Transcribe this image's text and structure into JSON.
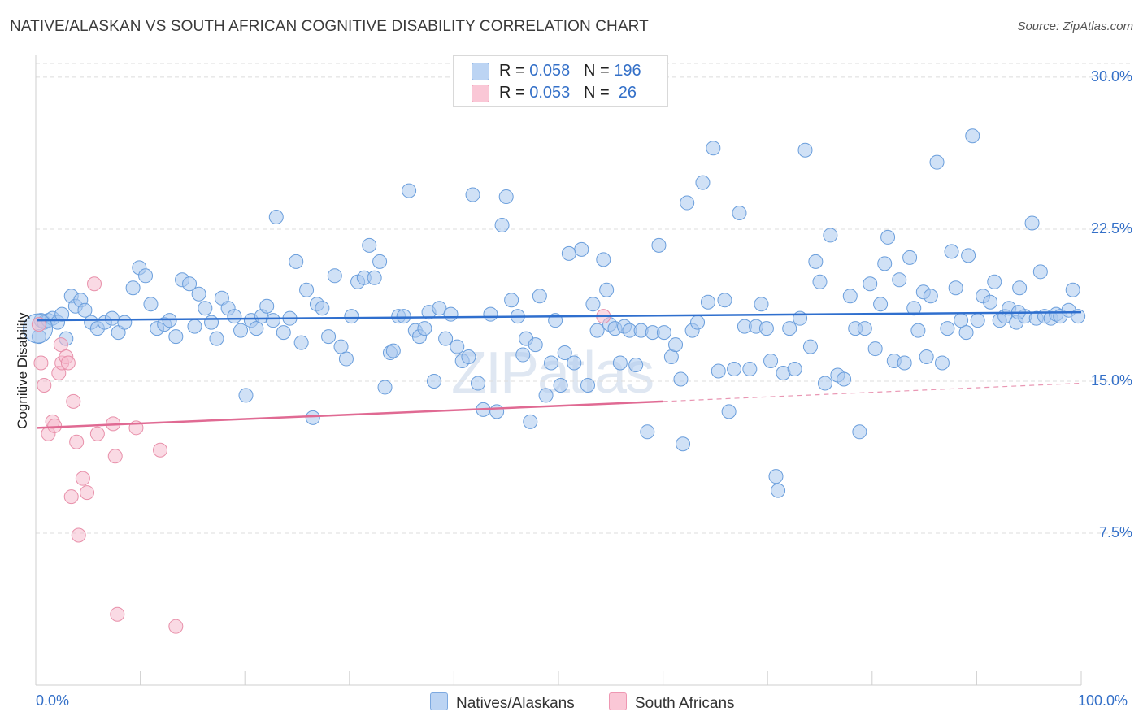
{
  "title": "NATIVE/ALASKAN VS SOUTH AFRICAN COGNITIVE DISABILITY CORRELATION CHART",
  "source": "Source: ZipAtlas.com",
  "watermark": {
    "main": "ZIP",
    "sub": "atlas"
  },
  "legend": {
    "rows": [
      {
        "r_label": "R =",
        "r_value": "0.058",
        "n_label": "N =",
        "n_value": "196"
      },
      {
        "r_label": "R =",
        "r_value": "0.053",
        "n_label": "N =",
        "n_value": " 26"
      }
    ]
  },
  "colors": {
    "blue_fill": "#a9c8ee",
    "blue_stroke": "#6a9edc",
    "blue_line": "#2f6fce",
    "pink_fill": "#f6bccd",
    "pink_stroke": "#e890aa",
    "pink_line": "#e06a93",
    "tick_text": "#3470c8",
    "grid": "#dcdcdc"
  },
  "chart_data": {
    "type": "scatter",
    "title": "NATIVE/ALASKAN VS SOUTH AFRICAN COGNITIVE DISABILITY CORRELATION CHART",
    "xlabel": "",
    "ylabel": "Cognitive Disability",
    "xlim": [
      0,
      100
    ],
    "ylim": [
      0,
      31
    ],
    "x_tick_labels": [
      "0.0%",
      "100.0%"
    ],
    "y_ticks": [
      7.5,
      15.0,
      22.5,
      30.0
    ],
    "y_tick_labels": [
      "7.5%",
      "15.0%",
      "22.5%",
      "30.0%"
    ],
    "grid": "horizontal dashed",
    "legend_placement": "top-center and bottom",
    "series": [
      {
        "name": "Natives/Alaskans",
        "r": 0.058,
        "n": 196,
        "trend": {
          "x": [
            0,
            100
          ],
          "y": [
            18.0,
            18.4
          ],
          "style": "solid"
        },
        "points": [
          [
            0.3,
            17.2
          ],
          [
            0.5,
            18.0
          ],
          [
            0.8,
            17.9
          ],
          [
            1.2,
            18.0
          ],
          [
            1.6,
            18.1
          ],
          [
            2.1,
            17.9
          ],
          [
            2.5,
            18.3
          ],
          [
            2.9,
            17.1
          ],
          [
            3.4,
            19.2
          ],
          [
            3.8,
            18.7
          ],
          [
            4.3,
            19.0
          ],
          [
            4.7,
            18.5
          ],
          [
            5.3,
            17.9
          ],
          [
            5.9,
            17.6
          ],
          [
            6.6,
            17.9
          ],
          [
            7.3,
            18.1
          ],
          [
            7.9,
            17.4
          ],
          [
            8.5,
            17.9
          ],
          [
            9.3,
            19.6
          ],
          [
            9.9,
            20.6
          ],
          [
            10.5,
            20.2
          ],
          [
            11.0,
            18.8
          ],
          [
            11.6,
            17.6
          ],
          [
            12.3,
            17.8
          ],
          [
            12.8,
            18.0
          ],
          [
            13.4,
            17.2
          ],
          [
            14.0,
            20.0
          ],
          [
            14.7,
            19.8
          ],
          [
            15.2,
            17.7
          ],
          [
            15.6,
            19.3
          ],
          [
            16.2,
            18.6
          ],
          [
            16.8,
            17.9
          ],
          [
            17.3,
            17.1
          ],
          [
            17.8,
            19.1
          ],
          [
            18.4,
            18.6
          ],
          [
            19.0,
            18.2
          ],
          [
            19.6,
            17.5
          ],
          [
            20.1,
            14.3
          ],
          [
            20.6,
            18.0
          ],
          [
            21.1,
            17.6
          ],
          [
            21.6,
            18.2
          ],
          [
            22.1,
            18.7
          ],
          [
            22.7,
            18.0
          ],
          [
            23.0,
            23.1
          ],
          [
            23.7,
            17.4
          ],
          [
            24.3,
            18.1
          ],
          [
            24.9,
            20.9
          ],
          [
            25.4,
            16.9
          ],
          [
            25.9,
            19.5
          ],
          [
            26.5,
            13.2
          ],
          [
            26.9,
            18.8
          ],
          [
            27.4,
            18.6
          ],
          [
            28.0,
            17.2
          ],
          [
            28.6,
            20.2
          ],
          [
            29.2,
            16.7
          ],
          [
            29.7,
            16.1
          ],
          [
            30.2,
            18.2
          ],
          [
            30.8,
            19.9
          ],
          [
            31.4,
            20.1
          ],
          [
            31.9,
            21.7
          ],
          [
            32.4,
            20.1
          ],
          [
            32.9,
            20.9
          ],
          [
            33.4,
            14.7
          ],
          [
            33.9,
            16.4
          ],
          [
            34.2,
            16.5
          ],
          [
            34.7,
            18.2
          ],
          [
            35.2,
            18.2
          ],
          [
            35.7,
            24.4
          ],
          [
            36.3,
            17.5
          ],
          [
            36.7,
            17.2
          ],
          [
            37.2,
            17.6
          ],
          [
            37.6,
            18.4
          ],
          [
            38.1,
            15.0
          ],
          [
            38.6,
            18.6
          ],
          [
            39.2,
            17.1
          ],
          [
            39.7,
            18.3
          ],
          [
            40.3,
            16.7
          ],
          [
            40.8,
            16.0
          ],
          [
            41.4,
            16.2
          ],
          [
            41.8,
            24.2
          ],
          [
            42.3,
            14.9
          ],
          [
            42.8,
            13.6
          ],
          [
            43.5,
            18.3
          ],
          [
            44.1,
            13.5
          ],
          [
            44.6,
            22.7
          ],
          [
            45.0,
            24.1
          ],
          [
            45.5,
            19.0
          ],
          [
            46.1,
            18.2
          ],
          [
            46.6,
            16.3
          ],
          [
            46.9,
            17.1
          ],
          [
            47.3,
            13.0
          ],
          [
            47.8,
            16.8
          ],
          [
            48.2,
            19.2
          ],
          [
            48.8,
            14.3
          ],
          [
            49.3,
            15.9
          ],
          [
            49.7,
            18.0
          ],
          [
            50.2,
            14.8
          ],
          [
            50.6,
            16.4
          ],
          [
            51.0,
            21.3
          ],
          [
            51.5,
            15.9
          ],
          [
            52.2,
            21.5
          ],
          [
            52.8,
            14.8
          ],
          [
            53.3,
            18.8
          ],
          [
            53.7,
            17.5
          ],
          [
            54.3,
            21.0
          ],
          [
            54.6,
            19.5
          ],
          [
            54.9,
            17.8
          ],
          [
            55.4,
            17.6
          ],
          [
            55.9,
            15.9
          ],
          [
            56.3,
            17.7
          ],
          [
            56.8,
            17.5
          ],
          [
            57.4,
            15.8
          ],
          [
            57.9,
            17.5
          ],
          [
            58.5,
            12.5
          ],
          [
            59.0,
            17.4
          ],
          [
            59.6,
            21.7
          ],
          [
            60.1,
            17.4
          ],
          [
            60.8,
            16.2
          ],
          [
            61.2,
            16.8
          ],
          [
            61.7,
            15.1
          ],
          [
            62.3,
            23.8
          ],
          [
            62.8,
            17.5
          ],
          [
            63.3,
            17.9
          ],
          [
            63.8,
            24.8
          ],
          [
            64.3,
            18.9
          ],
          [
            64.8,
            26.5
          ],
          [
            65.3,
            15.5
          ],
          [
            65.9,
            19.0
          ],
          [
            66.3,
            13.5
          ],
          [
            66.8,
            15.6
          ],
          [
            67.3,
            23.3
          ],
          [
            67.8,
            17.7
          ],
          [
            68.3,
            15.6
          ],
          [
            68.9,
            17.7
          ],
          [
            69.4,
            18.8
          ],
          [
            69.9,
            17.6
          ],
          [
            70.3,
            16.0
          ],
          [
            70.8,
            10.3
          ],
          [
            71.0,
            9.6
          ],
          [
            71.5,
            15.4
          ],
          [
            72.1,
            17.6
          ],
          [
            72.6,
            15.6
          ],
          [
            73.1,
            18.1
          ],
          [
            73.6,
            26.4
          ],
          [
            74.1,
            16.7
          ],
          [
            74.6,
            20.9
          ],
          [
            75.0,
            19.9
          ],
          [
            75.5,
            14.9
          ],
          [
            76.0,
            22.2
          ],
          [
            76.7,
            15.3
          ],
          [
            77.3,
            15.1
          ],
          [
            77.9,
            19.2
          ],
          [
            78.4,
            17.6
          ],
          [
            78.8,
            12.5
          ],
          [
            79.3,
            17.6
          ],
          [
            79.8,
            19.8
          ],
          [
            80.3,
            16.6
          ],
          [
            80.8,
            18.8
          ],
          [
            81.2,
            20.8
          ],
          [
            81.5,
            22.1
          ],
          [
            82.1,
            16.0
          ],
          [
            82.6,
            20.0
          ],
          [
            83.1,
            15.9
          ],
          [
            83.6,
            21.1
          ],
          [
            84.0,
            18.6
          ],
          [
            84.4,
            17.5
          ],
          [
            84.9,
            19.4
          ],
          [
            85.2,
            16.2
          ],
          [
            85.6,
            19.2
          ],
          [
            86.2,
            25.8
          ],
          [
            86.7,
            15.9
          ],
          [
            87.2,
            17.6
          ],
          [
            87.6,
            21.4
          ],
          [
            88.0,
            19.6
          ],
          [
            88.5,
            18.0
          ],
          [
            89.0,
            17.4
          ],
          [
            89.6,
            27.1
          ],
          [
            90.1,
            18.0
          ],
          [
            90.6,
            19.2
          ],
          [
            91.3,
            18.9
          ],
          [
            91.7,
            19.9
          ],
          [
            92.2,
            18.0
          ],
          [
            92.7,
            18.2
          ],
          [
            93.1,
            18.6
          ],
          [
            93.8,
            17.9
          ],
          [
            94.1,
            19.6
          ],
          [
            94.6,
            18.2
          ],
          [
            95.3,
            22.8
          ],
          [
            95.7,
            18.1
          ],
          [
            96.1,
            20.4
          ],
          [
            96.5,
            18.2
          ],
          [
            97.1,
            18.1
          ],
          [
            97.6,
            18.3
          ],
          [
            98.0,
            18.2
          ],
          [
            98.8,
            18.5
          ],
          [
            99.2,
            19.5
          ],
          [
            99.7,
            18.2
          ],
          [
            61.9,
            11.9
          ],
          [
            89.2,
            21.2
          ],
          [
            94.0,
            18.4
          ]
        ]
      },
      {
        "name": "South Africans",
        "r": 0.053,
        "n": 26,
        "trend": {
          "x": [
            0,
            60
          ],
          "y": [
            12.7,
            14.0
          ],
          "style": "solid",
          "extension": {
            "x": [
              60,
              100
            ],
            "y": [
              14.0,
              14.9
            ],
            "style": "dashed"
          }
        },
        "points": [
          [
            0.3,
            17.8
          ],
          [
            0.5,
            15.9
          ],
          [
            0.8,
            14.8
          ],
          [
            1.2,
            12.4
          ],
          [
            1.6,
            13.0
          ],
          [
            1.8,
            12.8
          ],
          [
            2.2,
            15.4
          ],
          [
            2.4,
            16.8
          ],
          [
            2.5,
            15.9
          ],
          [
            2.9,
            16.2
          ],
          [
            3.1,
            15.9
          ],
          [
            3.4,
            9.3
          ],
          [
            3.6,
            14.0
          ],
          [
            3.9,
            12.0
          ],
          [
            4.1,
            7.4
          ],
          [
            4.5,
            10.2
          ],
          [
            4.9,
            9.5
          ],
          [
            5.6,
            19.8
          ],
          [
            5.9,
            12.4
          ],
          [
            7.4,
            12.9
          ],
          [
            7.6,
            11.3
          ],
          [
            7.8,
            3.5
          ],
          [
            9.6,
            12.7
          ],
          [
            11.9,
            11.6
          ],
          [
            13.4,
            2.9
          ],
          [
            54.3,
            18.2
          ]
        ]
      }
    ]
  },
  "bottom_legend": {
    "items": [
      "Natives/Alaskans",
      "South Africans"
    ]
  }
}
